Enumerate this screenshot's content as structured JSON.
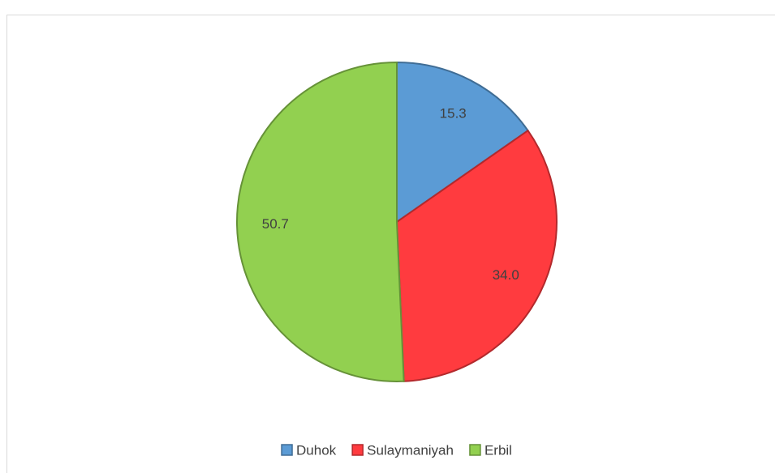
{
  "chart_data": {
    "type": "pie",
    "categories": [
      "Duhok",
      "Sulaymaniyah",
      "Erbil"
    ],
    "values": [
      15.3,
      34.0,
      50.7
    ],
    "value_labels": [
      "15.3",
      "34.0",
      "50.7"
    ],
    "colors": [
      "#5b9bd5",
      "#ff3b3f",
      "#92d050"
    ],
    "legend": "bottom"
  }
}
